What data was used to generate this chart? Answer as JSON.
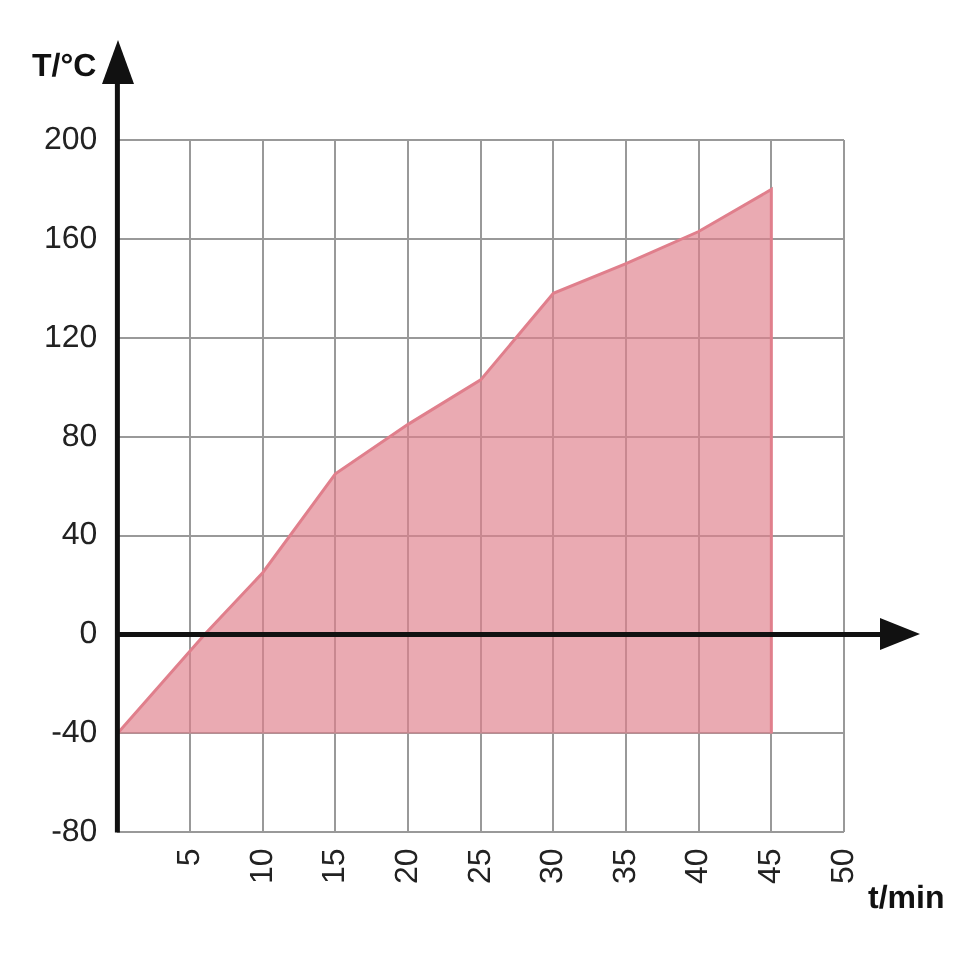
{
  "chart_data": {
    "type": "area",
    "xlabel": "t/min",
    "ylabel": "T/°C",
    "x": [
      0,
      6,
      10,
      15,
      20,
      25,
      30,
      35,
      40,
      45,
      45
    ],
    "series": [
      {
        "color": "#e07f8c",
        "values": [
          -40,
          0,
          25,
          65,
          85,
          103,
          138,
          150,
          163,
          180,
          -40
        ]
      }
    ],
    "xlim": [
      0,
      50
    ],
    "xticks": [
      {
        "value": 0,
        "label": null
      },
      5,
      10,
      15,
      20,
      25,
      30,
      35,
      40,
      45,
      50
    ],
    "ylim": [
      -80,
      200
    ],
    "yticks": [
      -80,
      -40,
      0,
      40,
      80,
      120,
      160,
      200
    ],
    "grid": true,
    "legend": false,
    "ref_lines": [
      {
        "axis": "y",
        "value": 0,
        "color": "#111111"
      }
    ]
  }
}
